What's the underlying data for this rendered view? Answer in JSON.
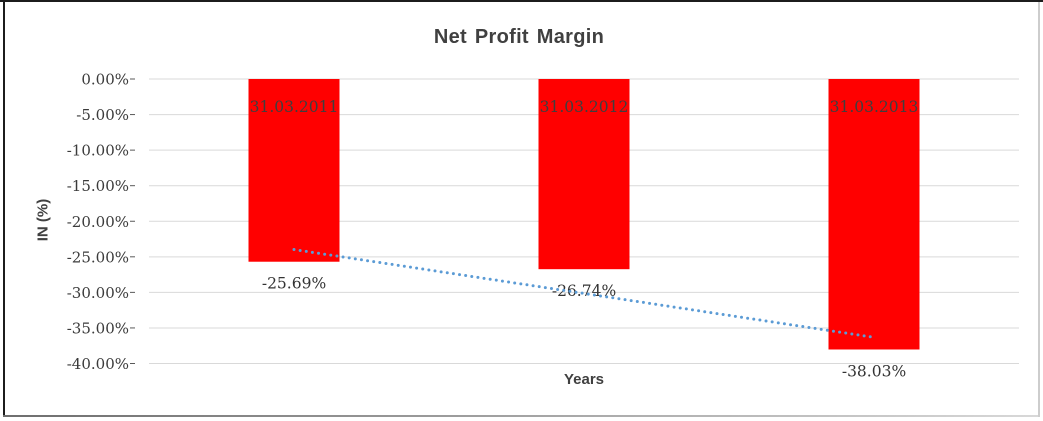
{
  "chart_data": {
    "type": "bar",
    "title": "Net Profit Margin",
    "xlabel": "Years",
    "ylabel": "IN (%)",
    "categories": [
      "31.03.2011",
      "31.03.2012",
      "31.03.2013"
    ],
    "values": [
      -25.69,
      -26.74,
      -38.03
    ],
    "value_labels": [
      "-25.69%",
      "-26.74%",
      "-38.03%"
    ],
    "y_ticks": [
      "0.00%",
      "-5.00%",
      "-10.00%",
      "-15.00%",
      "-20.00%",
      "-25.00%",
      "-30.00%",
      "-35.00%",
      "-40.00%"
    ],
    "y_tick_values": [
      0,
      -5,
      -10,
      -15,
      -20,
      -25,
      -30,
      -35,
      -40
    ],
    "ylim": [
      -40,
      0
    ],
    "grid": true,
    "legend": "none",
    "bar_color": "#FF0000",
    "text_color": "#404040",
    "gridline_color": "#D9D9D9",
    "tick_mark_color": "#595959",
    "trendline": {
      "type": "linear",
      "style": "dotted",
      "color": "#5B9BD5",
      "start_value": -23.98,
      "end_value": -36.32
    }
  }
}
